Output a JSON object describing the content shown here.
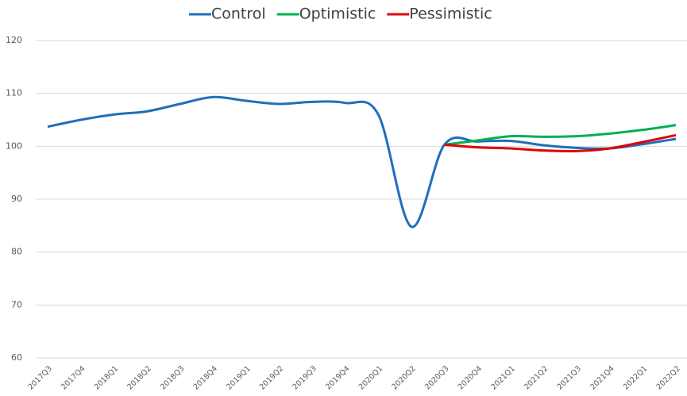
{
  "chart_data": {
    "type": "line",
    "categories": [
      "2017Q3",
      "2017Q4",
      "2018Q1",
      "2018Q2",
      "2018Q3",
      "2018Q4",
      "2019Q1",
      "2019Q2",
      "2019Q3",
      "2019Q4",
      "2020Q1",
      "2020Q2",
      "2020Q3",
      "2020Q4",
      "2021Q1",
      "2021Q2",
      "2021Q3",
      "2021Q4",
      "2022Q1",
      "2022Q2"
    ],
    "series": [
      {
        "name": "Control",
        "color": "#1f6fba",
        "values": [
          103.7,
          105,
          106,
          106.6,
          108,
          109.3,
          108.6,
          108,
          108.4,
          108.2,
          106,
          84.8,
          100.3,
          100.9,
          101,
          100.2,
          99.7,
          99.6,
          100.4,
          101.4
        ]
      },
      {
        "name": "Optimistic",
        "color": "#00b050",
        "values": [
          null,
          null,
          null,
          null,
          null,
          null,
          null,
          null,
          null,
          null,
          null,
          null,
          100.3,
          101.1,
          101.9,
          101.8,
          101.9,
          102.4,
          103.1,
          104.0
        ]
      },
      {
        "name": "Pessimistic",
        "color": "#e00000",
        "values": [
          null,
          null,
          null,
          null,
          null,
          null,
          null,
          null,
          null,
          null,
          null,
          null,
          100.3,
          99.8,
          99.6,
          99.2,
          99.1,
          99.6,
          100.8,
          102.1
        ]
      }
    ],
    "ylim": [
      60,
      120
    ],
    "yticks": [
      60,
      70,
      80,
      90,
      100,
      110,
      120
    ],
    "grid": true,
    "legend": "top"
  }
}
